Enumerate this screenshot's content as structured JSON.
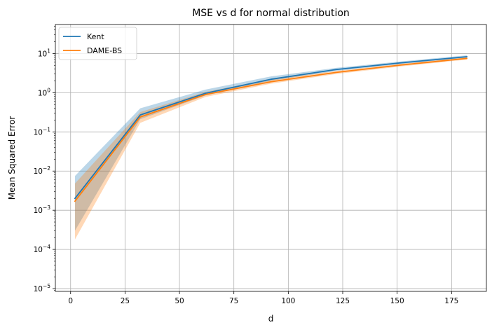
{
  "chart_data": {
    "type": "line",
    "title": "MSE vs d for normal distribution",
    "xlabel": "d",
    "ylabel": "Mean Squared Error",
    "xlim": [
      -7,
      191
    ],
    "ylim": [
      8.5e-06,
      55
    ],
    "yscale": "log",
    "grid": true,
    "legend_position": "top-left",
    "x_ticks": [
      0,
      25,
      50,
      75,
      100,
      125,
      150,
      175
    ],
    "x_tick_labels": [
      "0",
      "25",
      "50",
      "75",
      "100",
      "125",
      "150",
      "175"
    ],
    "y_ticks": [
      {
        "value": 1e-05,
        "base": "10",
        "exp": "−5"
      },
      {
        "value": 0.0001,
        "base": "10",
        "exp": "−4"
      },
      {
        "value": 0.001,
        "base": "10",
        "exp": "−3"
      },
      {
        "value": 0.01,
        "base": "10",
        "exp": "−2"
      },
      {
        "value": 0.1,
        "base": "10",
        "exp": "−1"
      },
      {
        "value": 1,
        "base": "10",
        "exp": "0"
      },
      {
        "value": 10,
        "base": "10",
        "exp": "1"
      }
    ],
    "x": [
      2,
      32,
      62,
      92,
      122,
      152,
      182
    ],
    "series": [
      {
        "name": "Kent",
        "color": "#1f77b4",
        "values": [
          0.002,
          0.27,
          0.97,
          2.2,
          3.9,
          5.8,
          8.3
        ],
        "lower": [
          0.0003,
          0.21,
          0.85,
          2.0,
          3.6,
          5.4,
          7.8
        ],
        "upper": [
          0.0075,
          0.4,
          1.2,
          2.6,
          4.3,
          6.3,
          9.0
        ]
      },
      {
        "name": "DAME-BS",
        "color": "#ff7f0e",
        "values": [
          0.0017,
          0.24,
          0.9,
          1.9,
          3.3,
          5.1,
          7.5
        ],
        "lower": [
          0.00018,
          0.17,
          0.78,
          1.7,
          3.0,
          4.7,
          7.0
        ],
        "upper": [
          0.0048,
          0.32,
          1.05,
          2.2,
          3.6,
          5.5,
          8.0
        ]
      }
    ]
  }
}
